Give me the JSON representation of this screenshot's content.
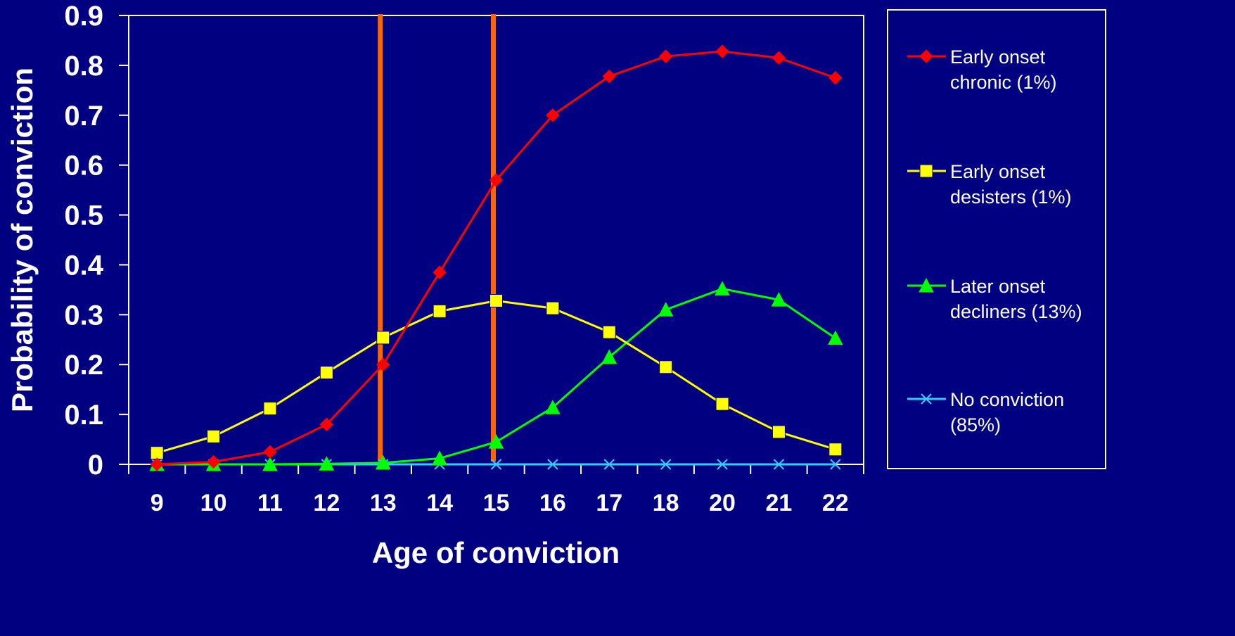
{
  "chart_data": {
    "type": "line",
    "xlabel": "Age of conviction",
    "ylabel": "Probability of conviction",
    "categories": [
      "9",
      "10",
      "11",
      "12",
      "13",
      "14",
      "15",
      "16",
      "17",
      "18",
      "20",
      "21",
      "22"
    ],
    "ylim": [
      0,
      0.9
    ],
    "yticks": [
      "0",
      "0.1",
      "0.2",
      "0.3",
      "0.4",
      "0.5",
      "0.6",
      "0.7",
      "0.8",
      "0.9"
    ],
    "grid": false,
    "legend_position": "right",
    "reference_lines_at": [
      "13",
      "15"
    ],
    "reference_line_color": "#ff6600",
    "background_color": "#000080",
    "plot_border_color": "#ffffff",
    "series": [
      {
        "name": "Early onset chronic (1%)",
        "legend_lines": [
          "Early onset",
          "chronic (1%)"
        ],
        "color": "#ff0000",
        "marker": "diamond",
        "values": [
          0.0,
          0.005,
          0.025,
          0.08,
          0.2,
          0.385,
          0.57,
          0.7,
          0.778,
          0.818,
          0.828,
          0.815,
          0.775
        ]
      },
      {
        "name": "Early onset desisters (1%)",
        "legend_lines": [
          "Early onset",
          "desisters (1%)"
        ],
        "color": "#ffff00",
        "marker": "square",
        "values": [
          0.023,
          0.056,
          0.112,
          0.184,
          0.254,
          0.307,
          0.328,
          0.313,
          0.265,
          0.195,
          0.121,
          0.065,
          0.03
        ]
      },
      {
        "name": "Later onset decliners (13%)",
        "legend_lines": [
          "Later onset",
          "decliners (13%)"
        ],
        "color": "#00ff00",
        "marker": "triangle",
        "values": [
          0.0,
          0.0,
          0.0,
          0.001,
          0.003,
          0.012,
          0.045,
          0.114,
          0.215,
          0.31,
          0.352,
          0.33,
          0.253
        ]
      },
      {
        "name": "No conviction (85%)",
        "legend_lines": [
          "No conviction",
          "(85%)"
        ],
        "color": "#33ccff",
        "marker": "x",
        "values": [
          0,
          0,
          0,
          0,
          0,
          0,
          0,
          0,
          0,
          0,
          0,
          0,
          0
        ]
      }
    ]
  }
}
